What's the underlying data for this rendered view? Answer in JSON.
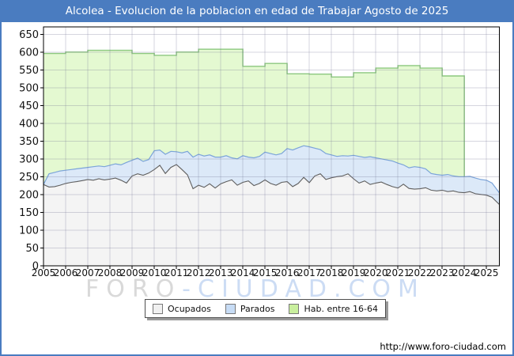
{
  "window": {
    "title": "Alcolea - Evolucion de la poblacion en edad de Trabajar Agosto de 2025"
  },
  "watermark": {
    "part1": "FORO",
    "part2": "-CIUDAD.COM"
  },
  "footer": {
    "url": "http://www.foro-ciudad.com"
  },
  "legend": [
    {
      "label": "Ocupados",
      "swatch": "#f0f0f0"
    },
    {
      "label": "Parados",
      "swatch": "#c7dcf5"
    },
    {
      "label": "Hab. entre 16-64",
      "swatch": "#c9ef9e"
    }
  ],
  "colors": {
    "frame_and_titlebar": "#4a7cc0",
    "hab_fill": "#e4f9d1",
    "hab_stroke": "#8cc87f",
    "parados_fill": "#dce9f8",
    "parados_stroke": "#7ba4d9",
    "ocupados_fill": "#f4f4f4",
    "ocupados_stroke": "#5f5f5f",
    "gridline": "rgba(108,108,140,0.28)",
    "axis": "#000000",
    "tick_label": "#111111"
  },
  "chart_data": {
    "type": "area",
    "title": "Alcolea - Evolucion de la poblacion en edad de Trabajar Agosto de 2025",
    "xlabel": "",
    "ylabel": "",
    "ylim": [
      0,
      650
    ],
    "y_tick_step": 50,
    "grid": true,
    "legend_position": "bottom",
    "x_ticks": [
      2005,
      2006,
      2007,
      2008,
      2009,
      2010,
      2011,
      2012,
      2013,
      2014,
      2015,
      2016,
      2017,
      2018,
      2019,
      2020,
      2021,
      2022,
      2023,
      2024,
      2025
    ],
    "t_end": 2025.58,
    "hab_16_64": {
      "name": "Hab. entre 16-64",
      "kind": "yearly-steps",
      "years": [
        2005,
        2006,
        2007,
        2008,
        2009,
        2010,
        2011,
        2012,
        2013,
        2014,
        2015,
        2016,
        2017,
        2018,
        2019,
        2020,
        2021,
        2022,
        2023
      ],
      "values": [
        596,
        600,
        605,
        605,
        596,
        591,
        600,
        608,
        608,
        560,
        568,
        539,
        538,
        530,
        542,
        555,
        562,
        555,
        533
      ]
    },
    "ocupados": {
      "name": "Ocupados",
      "kind": "quarterly",
      "start": 2005,
      "step_years": 0.25,
      "values": [
        228,
        221,
        222,
        226,
        231,
        234,
        236,
        239,
        242,
        240,
        244,
        241,
        243,
        246,
        240,
        232,
        252,
        258,
        254,
        260,
        270,
        282,
        259,
        276,
        284,
        270,
        255,
        216,
        226,
        220,
        230,
        218,
        230,
        236,
        241,
        226,
        234,
        238,
        225,
        231,
        241,
        231,
        226,
        234,
        236,
        222,
        231,
        248,
        233,
        252,
        258,
        242,
        247,
        250,
        252,
        258,
        244,
        232,
        238,
        228,
        232,
        235,
        228,
        222,
        218,
        229,
        217,
        215,
        216,
        219,
        212,
        210,
        212,
        208,
        210,
        206,
        205,
        208,
        202,
        200,
        198,
        192,
        172
      ]
    },
    "parados": {
      "name": "Parados",
      "kind": "quarterly-stacked-over-ocupados",
      "start": 2005,
      "step_years": 0.25,
      "values": [
        0,
        37,
        40,
        40,
        37,
        36,
        36,
        35,
        34,
        38,
        36,
        37,
        39,
        40,
        43,
        58,
        44,
        44,
        39,
        38,
        53,
        43,
        54,
        45,
        36,
        47,
        66,
        89,
        87,
        88,
        81,
        87,
        75,
        73,
        62,
        74,
        75,
        67,
        78,
        76,
        78,
        84,
        85,
        81,
        93,
        103,
        100,
        89,
        101,
        78,
        68,
        73,
        64,
        57,
        57,
        50,
        66,
        75,
        66,
        78,
        71,
        65,
        69,
        72,
        70,
        54,
        58,
        63,
        60,
        53,
        47,
        46,
        42,
        48,
        42,
        44,
        45,
        43,
        44,
        42,
        42,
        40,
        33
      ]
    }
  }
}
